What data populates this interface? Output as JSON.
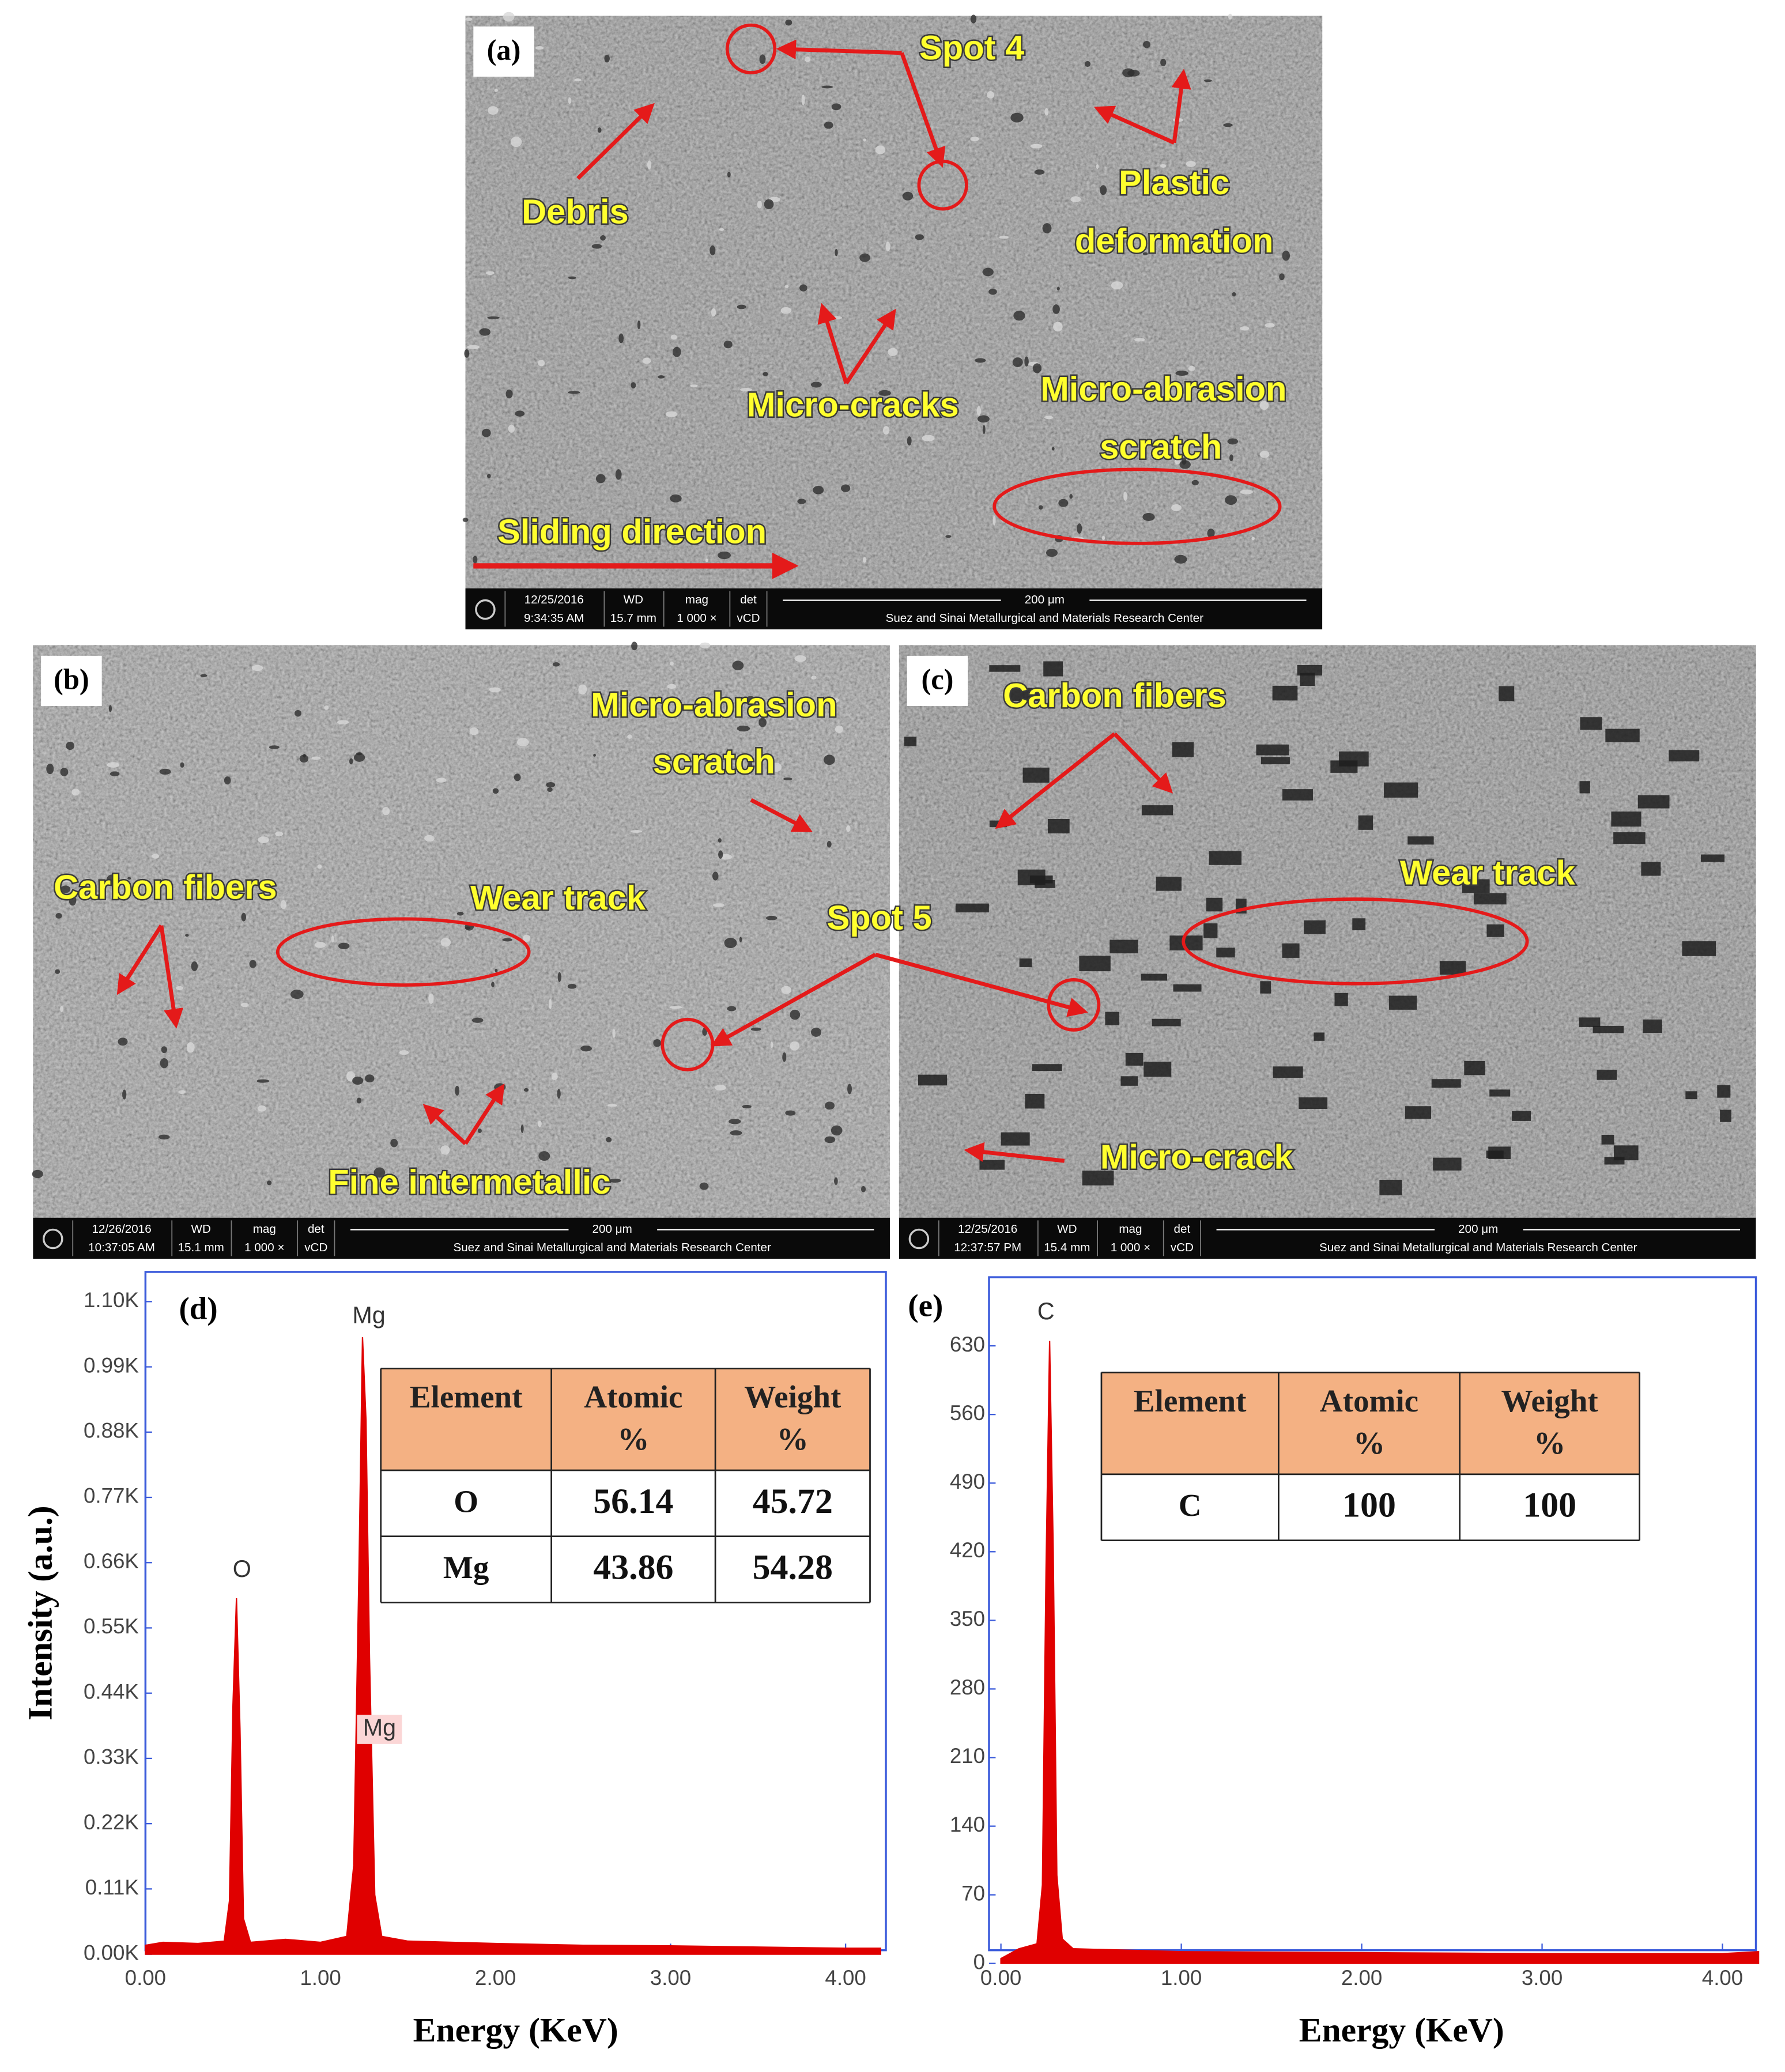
{
  "panels": [
    {
      "label": "(a)",
      "annotations": [
        "Spot 4",
        "Debris",
        "Plastic",
        "deformation",
        "Micro-cracks",
        "Micro-abrasion",
        "scratch",
        "Sliding direction"
      ],
      "info": {
        "date": "12/25/2016",
        "time": "9:34:35 AM",
        "wd_label": "WD",
        "wd": "15.7 mm",
        "mag_label": "mag",
        "mag": "1 000 ×",
        "det_label": "det",
        "det": "vCD",
        "scale": "200 μm",
        "center": "Suez and Sinai Metallurgical and Materials Research Center"
      }
    },
    {
      "label": "(b)",
      "annotations": [
        "Micro-abrasion",
        "scratch",
        "Carbon fibers",
        "Wear track",
        "Spot 5",
        "Fine intermetallic"
      ],
      "info": {
        "date": "12/26/2016",
        "time": "10:37:05 AM",
        "wd_label": "WD",
        "wd": "15.1 mm",
        "mag_label": "mag",
        "mag": "1 000 ×",
        "det_label": "det",
        "det": "vCD",
        "scale": "200 μm",
        "center": "Suez and Sinai Metallurgical and Materials Research Center"
      }
    },
    {
      "label": "(c)",
      "annotations": [
        "Carbon fibers",
        "Wear track",
        "Micro-crack"
      ],
      "info": {
        "date": "12/25/2016",
        "time": "12:37:57 PM",
        "wd_label": "WD",
        "wd": "15.4 mm",
        "mag_label": "mag",
        "mag": "1 000 ×",
        "det_label": "det",
        "det": "vCD",
        "scale": "200 μm",
        "center": "Suez and Sinai Metallurgical and Materials Research Center"
      }
    }
  ],
  "chart_data": [
    {
      "type": "area",
      "panel_label": "(d)",
      "xlabel": "Energy (KeV)",
      "ylabel": "Intensity (a.u.)",
      "color": "#e00000",
      "x": [
        0,
        0.1,
        0.3,
        0.45,
        0.48,
        0.5,
        0.52,
        0.54,
        0.56,
        0.6,
        0.8,
        1.0,
        1.15,
        1.19,
        1.22,
        1.24,
        1.26,
        1.28,
        1.31,
        1.35,
        1.5,
        2.0,
        2.5,
        3.0,
        3.5,
        4.0,
        4.2
      ],
      "values": [
        15,
        20,
        18,
        22,
        90,
        420,
        600,
        380,
        60,
        20,
        25,
        20,
        30,
        150,
        650,
        1040,
        900,
        500,
        100,
        30,
        22,
        18,
        15,
        14,
        12,
        10,
        10
      ],
      "xlim": [
        0,
        4.2
      ],
      "xticks": [
        {
          "value": 0,
          "label": "0.00"
        },
        {
          "value": 1,
          "label": "1.00"
        },
        {
          "value": 2,
          "label": "2.00"
        },
        {
          "value": 3,
          "label": "3.00"
        },
        {
          "value": 4,
          "label": "4.00"
        }
      ],
      "ylim": [
        0,
        1150
      ],
      "yticks": [
        {
          "value": 0,
          "label": "0.00K"
        },
        {
          "value": 110,
          "label": "0.11K"
        },
        {
          "value": 220,
          "label": "0.22K"
        },
        {
          "value": 330,
          "label": "0.33K"
        },
        {
          "value": 440,
          "label": "0.44K"
        },
        {
          "value": 550,
          "label": "0.55K"
        },
        {
          "value": 660,
          "label": "0.66K"
        },
        {
          "value": 770,
          "label": "0.77K"
        },
        {
          "value": 880,
          "label": "0.88K"
        },
        {
          "value": 990,
          "label": "0.99K"
        },
        {
          "value": 1100,
          "label": "1.10K"
        }
      ],
      "annotations": [
        "O",
        "Mg",
        "Mg"
      ],
      "table": {
        "header": [
          [
            "Element"
          ],
          [
            "Atomic",
            "%"
          ],
          [
            "Weight",
            "%"
          ]
        ],
        "rows": [
          [
            "O",
            "56.14",
            "45.72"
          ],
          [
            "Mg",
            "43.86",
            "54.28"
          ]
        ]
      }
    },
    {
      "type": "area",
      "panel_label": "(e)",
      "xlabel": "Energy (KeV)",
      "color": "#e00000",
      "x": [
        0,
        0.1,
        0.2,
        0.23,
        0.25,
        0.27,
        0.29,
        0.31,
        0.34,
        0.4,
        1,
        2,
        3,
        4,
        4.2
      ],
      "values": [
        5,
        15,
        20,
        80,
        400,
        635,
        420,
        90,
        25,
        15,
        12,
        11,
        10,
        10,
        12
      ],
      "xlim": [
        0,
        4.2
      ],
      "xticks": [
        {
          "value": 0,
          "label": "0.00"
        },
        {
          "value": 1,
          "label": "1.00"
        },
        {
          "value": 2,
          "label": "2.00"
        },
        {
          "value": 3,
          "label": "3.00"
        },
        {
          "value": 4,
          "label": "4.00"
        }
      ],
      "ylim": [
        0,
        700
      ],
      "yticks": [
        0,
        70,
        140,
        210,
        280,
        350,
        420,
        490,
        560,
        630
      ],
      "annotations": [
        "C"
      ],
      "table": {
        "header": [
          [
            "Element"
          ],
          [
            "Atomic",
            "%"
          ],
          [
            "Weight",
            "%"
          ]
        ],
        "rows": [
          [
            "C",
            "100",
            "100"
          ]
        ]
      }
    }
  ]
}
